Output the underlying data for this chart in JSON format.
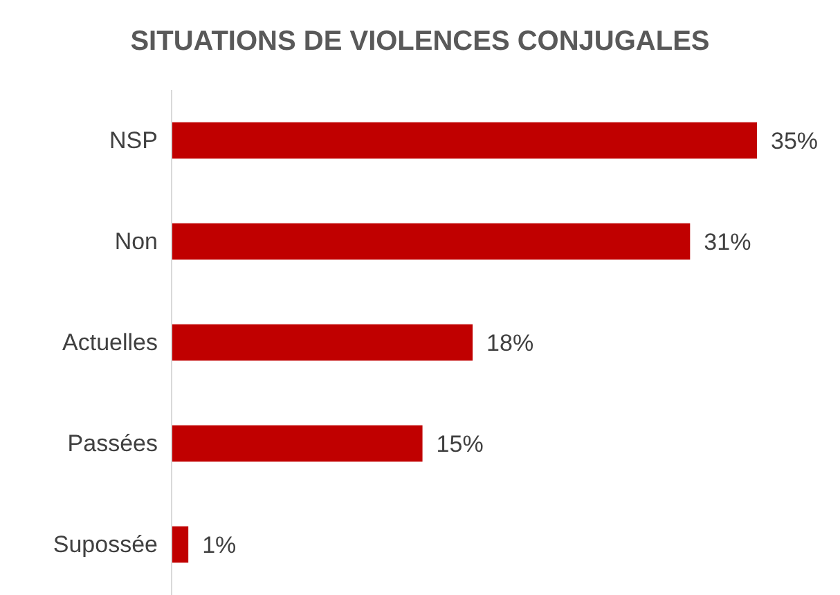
{
  "chart_data": {
    "type": "bar",
    "orientation": "horizontal",
    "title": "SITUATIONS DE VIOLENCES CONJUGALES",
    "categories": [
      "NSP",
      "Non",
      "Actuelles",
      "Passées",
      "Supossée"
    ],
    "values": [
      35,
      31,
      18,
      15,
      1
    ],
    "value_labels": [
      "35%",
      "31%",
      "18%",
      "15%",
      "1%"
    ],
    "color": "#c00000"
  }
}
